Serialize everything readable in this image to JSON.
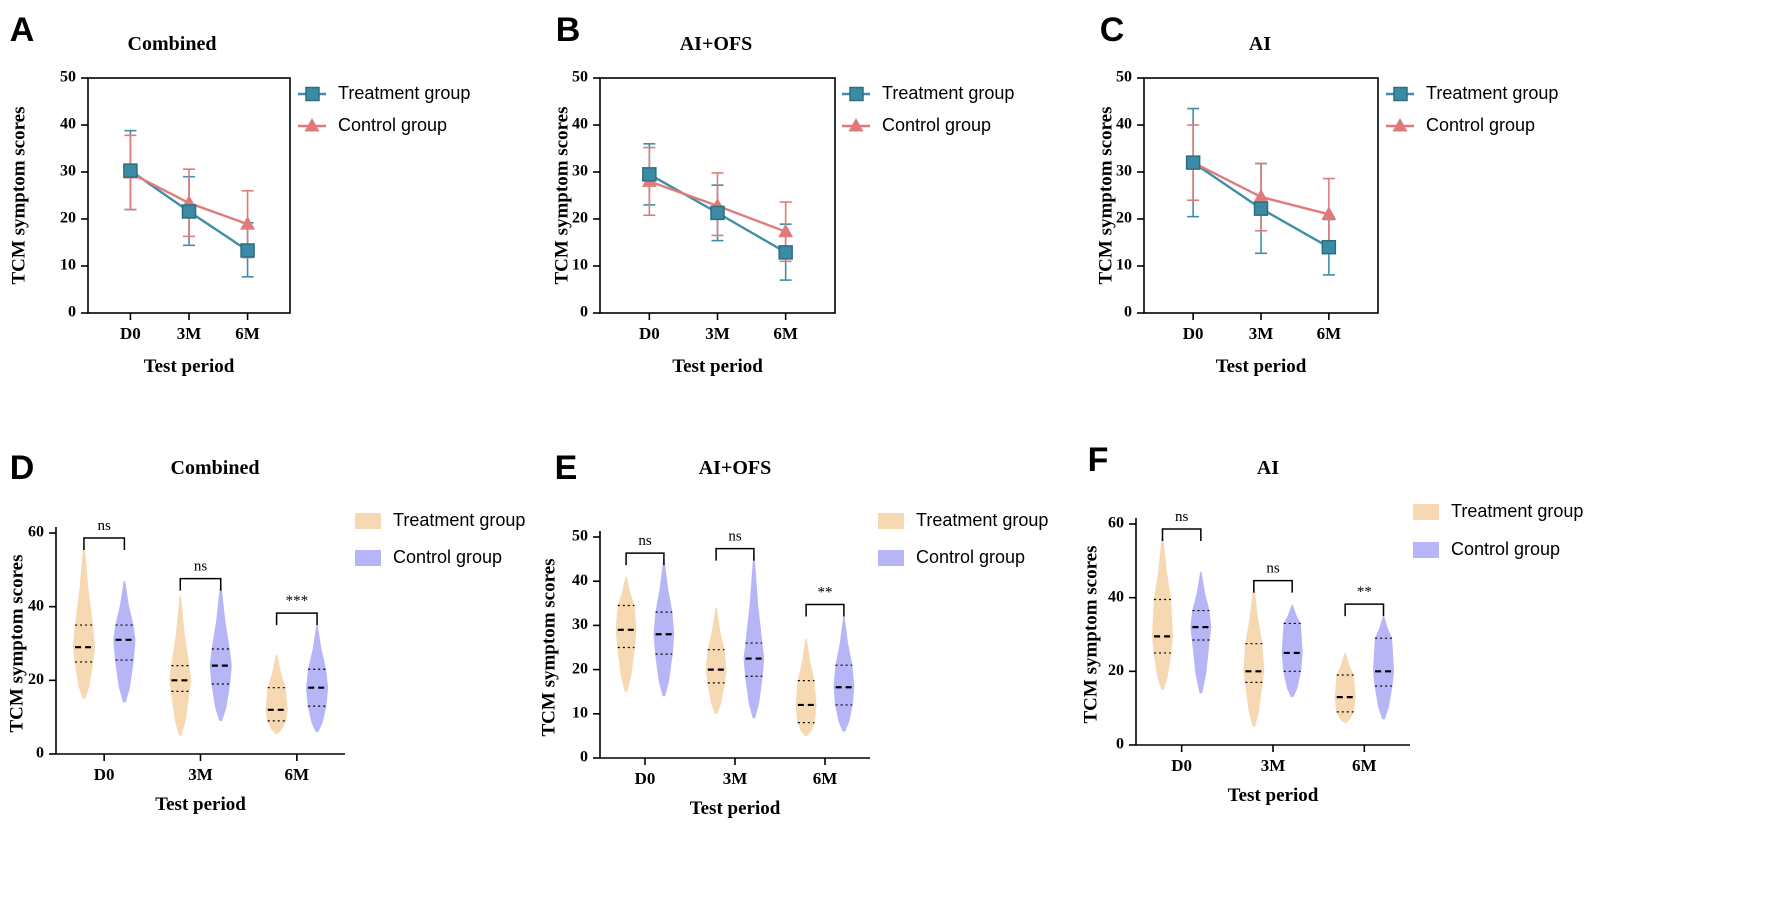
{
  "colors": {
    "treatment_line": "#3f8fa6",
    "treatment_marker": "#3a8ba3",
    "control_line": "#e07b7b",
    "treatment_violin": "#f6d9b3",
    "control_violin": "#b7b5f6",
    "axis": "#000000"
  },
  "chart_data": [
    {
      "panel": "A",
      "type": "line",
      "title": "Combined",
      "xlabel": "Test period",
      "ylabel": "TCM symptom scores",
      "categories": [
        "D0",
        "3M",
        "6M"
      ],
      "ylim": [
        0,
        50
      ],
      "yticks": [
        0,
        10,
        20,
        30,
        40,
        50
      ],
      "legend": [
        "Treatment group",
        "Control group"
      ],
      "series": [
        {
          "name": "Treatment group",
          "marker": "square",
          "values": [
            30.3,
            21.6,
            13.3
          ],
          "err_low": [
            22.0,
            14.4,
            7.7
          ],
          "err_high": [
            38.8,
            29.0,
            19.2
          ]
        },
        {
          "name": "Control group",
          "marker": "triangle",
          "values": [
            29.8,
            23.4,
            18.9
          ],
          "err_low": [
            22.0,
            16.3,
            11.8
          ],
          "err_high": [
            37.8,
            30.6,
            26.0
          ]
        }
      ]
    },
    {
      "panel": "B",
      "type": "line",
      "title": "AI+OFS",
      "xlabel": "Test period",
      "ylabel": "TCM symptom scores",
      "categories": [
        "D0",
        "3M",
        "6M"
      ],
      "ylim": [
        0,
        50
      ],
      "yticks": [
        0,
        10,
        20,
        30,
        40,
        50
      ],
      "legend": [
        "Treatment group",
        "Control group"
      ],
      "series": [
        {
          "name": "Treatment group",
          "marker": "square",
          "values": [
            29.5,
            21.3,
            12.9
          ],
          "err_low": [
            23.0,
            15.4,
            7.0
          ],
          "err_high": [
            36.0,
            27.2,
            18.9
          ]
        },
        {
          "name": "Control group",
          "marker": "triangle",
          "values": [
            28.0,
            22.8,
            17.3
          ],
          "err_low": [
            20.8,
            16.5,
            11.0
          ],
          "err_high": [
            35.2,
            29.8,
            23.6
          ]
        }
      ]
    },
    {
      "panel": "C",
      "type": "line",
      "title": "AI",
      "xlabel": "Test period",
      "ylabel": "TCM symptom scores",
      "categories": [
        "D0",
        "3M",
        "6M"
      ],
      "ylim": [
        0,
        50
      ],
      "yticks": [
        0,
        10,
        20,
        30,
        40,
        50
      ],
      "legend": [
        "Treatment group",
        "Control group"
      ],
      "series": [
        {
          "name": "Treatment group",
          "marker": "square",
          "values": [
            32.0,
            22.2,
            14.0
          ],
          "err_low": [
            20.5,
            12.7,
            8.1
          ],
          "err_high": [
            43.5,
            31.8,
            19.9
          ]
        },
        {
          "name": "Control group",
          "marker": "triangle",
          "values": [
            32.0,
            24.7,
            21.0
          ],
          "err_low": [
            24.0,
            17.5,
            13.3
          ],
          "err_high": [
            40.0,
            31.8,
            28.6
          ]
        }
      ]
    },
    {
      "panel": "D",
      "type": "violin",
      "title": "Combined",
      "xlabel": "Test period",
      "ylabel": "TCM symptom scores",
      "categories": [
        "D0",
        "3M",
        "6M"
      ],
      "ylim": [
        0,
        60
      ],
      "yticks": [
        0,
        20,
        40,
        60
      ],
      "legend": [
        "Treatment group",
        "Control group"
      ],
      "significance": [
        "ns",
        "ns",
        "***"
      ],
      "series": [
        {
          "name": "Treatment group",
          "groups": [
            {
              "min": 15,
              "max": 57,
              "q1": 25,
              "median": 29,
              "q3": 35
            },
            {
              "min": 5,
              "max": 43,
              "q1": 17,
              "median": 20,
              "q3": 24
            },
            {
              "min": 5.5,
              "max": 27,
              "q1": 9,
              "median": 12,
              "q3": 18
            }
          ]
        },
        {
          "name": "Control group",
          "groups": [
            {
              "min": 14,
              "max": 47,
              "q1": 25.5,
              "median": 31,
              "q3": 35
            },
            {
              "min": 9,
              "max": 46,
              "q1": 19,
              "median": 24,
              "q3": 28.5
            },
            {
              "min": 6,
              "max": 35,
              "q1": 13,
              "median": 18,
              "q3": 23
            }
          ]
        }
      ]
    },
    {
      "panel": "E",
      "type": "violin",
      "title": "AI+OFS",
      "xlabel": "Test period",
      "ylabel": "TCM symptom scores",
      "categories": [
        "D0",
        "3M",
        "6M"
      ],
      "ylim": [
        0,
        50
      ],
      "yticks": [
        0,
        10,
        20,
        30,
        40,
        50
      ],
      "legend": [
        "Treatment group",
        "Control group"
      ],
      "significance": [
        "ns",
        "ns",
        "**"
      ],
      "series": [
        {
          "name": "Treatment group",
          "groups": [
            {
              "min": 15,
              "max": 41,
              "q1": 25,
              "median": 29,
              "q3": 34.5
            },
            {
              "min": 10,
              "max": 34,
              "q1": 17,
              "median": 20,
              "q3": 24.5
            },
            {
              "min": 5,
              "max": 27,
              "q1": 8,
              "median": 12,
              "q3": 17.5
            }
          ]
        },
        {
          "name": "Control group",
          "groups": [
            {
              "min": 14,
              "max": 45,
              "q1": 23.5,
              "median": 28,
              "q3": 33
            },
            {
              "min": 9,
              "max": 46,
              "q1": 18.5,
              "median": 22.5,
              "q3": 26
            },
            {
              "min": 6,
              "max": 32,
              "q1": 12,
              "median": 16,
              "q3": 21
            }
          ]
        }
      ]
    },
    {
      "panel": "F",
      "type": "violin",
      "title": "AI",
      "xlabel": "Test period",
      "ylabel": "TCM symptom scores",
      "categories": [
        "D0",
        "3M",
        "6M"
      ],
      "ylim": [
        0,
        60
      ],
      "yticks": [
        0,
        20,
        40,
        60
      ],
      "legend": [
        "Treatment group",
        "Control group"
      ],
      "significance": [
        "ns",
        "ns",
        "**"
      ],
      "series": [
        {
          "name": "Treatment group",
          "groups": [
            {
              "min": 15,
              "max": 57,
              "q1": 25,
              "median": 29.5,
              "q3": 39.5
            },
            {
              "min": 5,
              "max": 43,
              "q1": 17,
              "median": 20,
              "q3": 27.5
            },
            {
              "min": 6,
              "max": 25,
              "q1": 9,
              "median": 13,
              "q3": 19
            }
          ]
        },
        {
          "name": "Control group",
          "groups": [
            {
              "min": 14,
              "max": 47,
              "q1": 28.5,
              "median": 32,
              "q3": 36.5
            },
            {
              "min": 13,
              "max": 38,
              "q1": 20,
              "median": 25,
              "q3": 33
            },
            {
              "min": 7,
              "max": 35,
              "q1": 16,
              "median": 20,
              "q3": 29
            }
          ]
        }
      ]
    }
  ]
}
